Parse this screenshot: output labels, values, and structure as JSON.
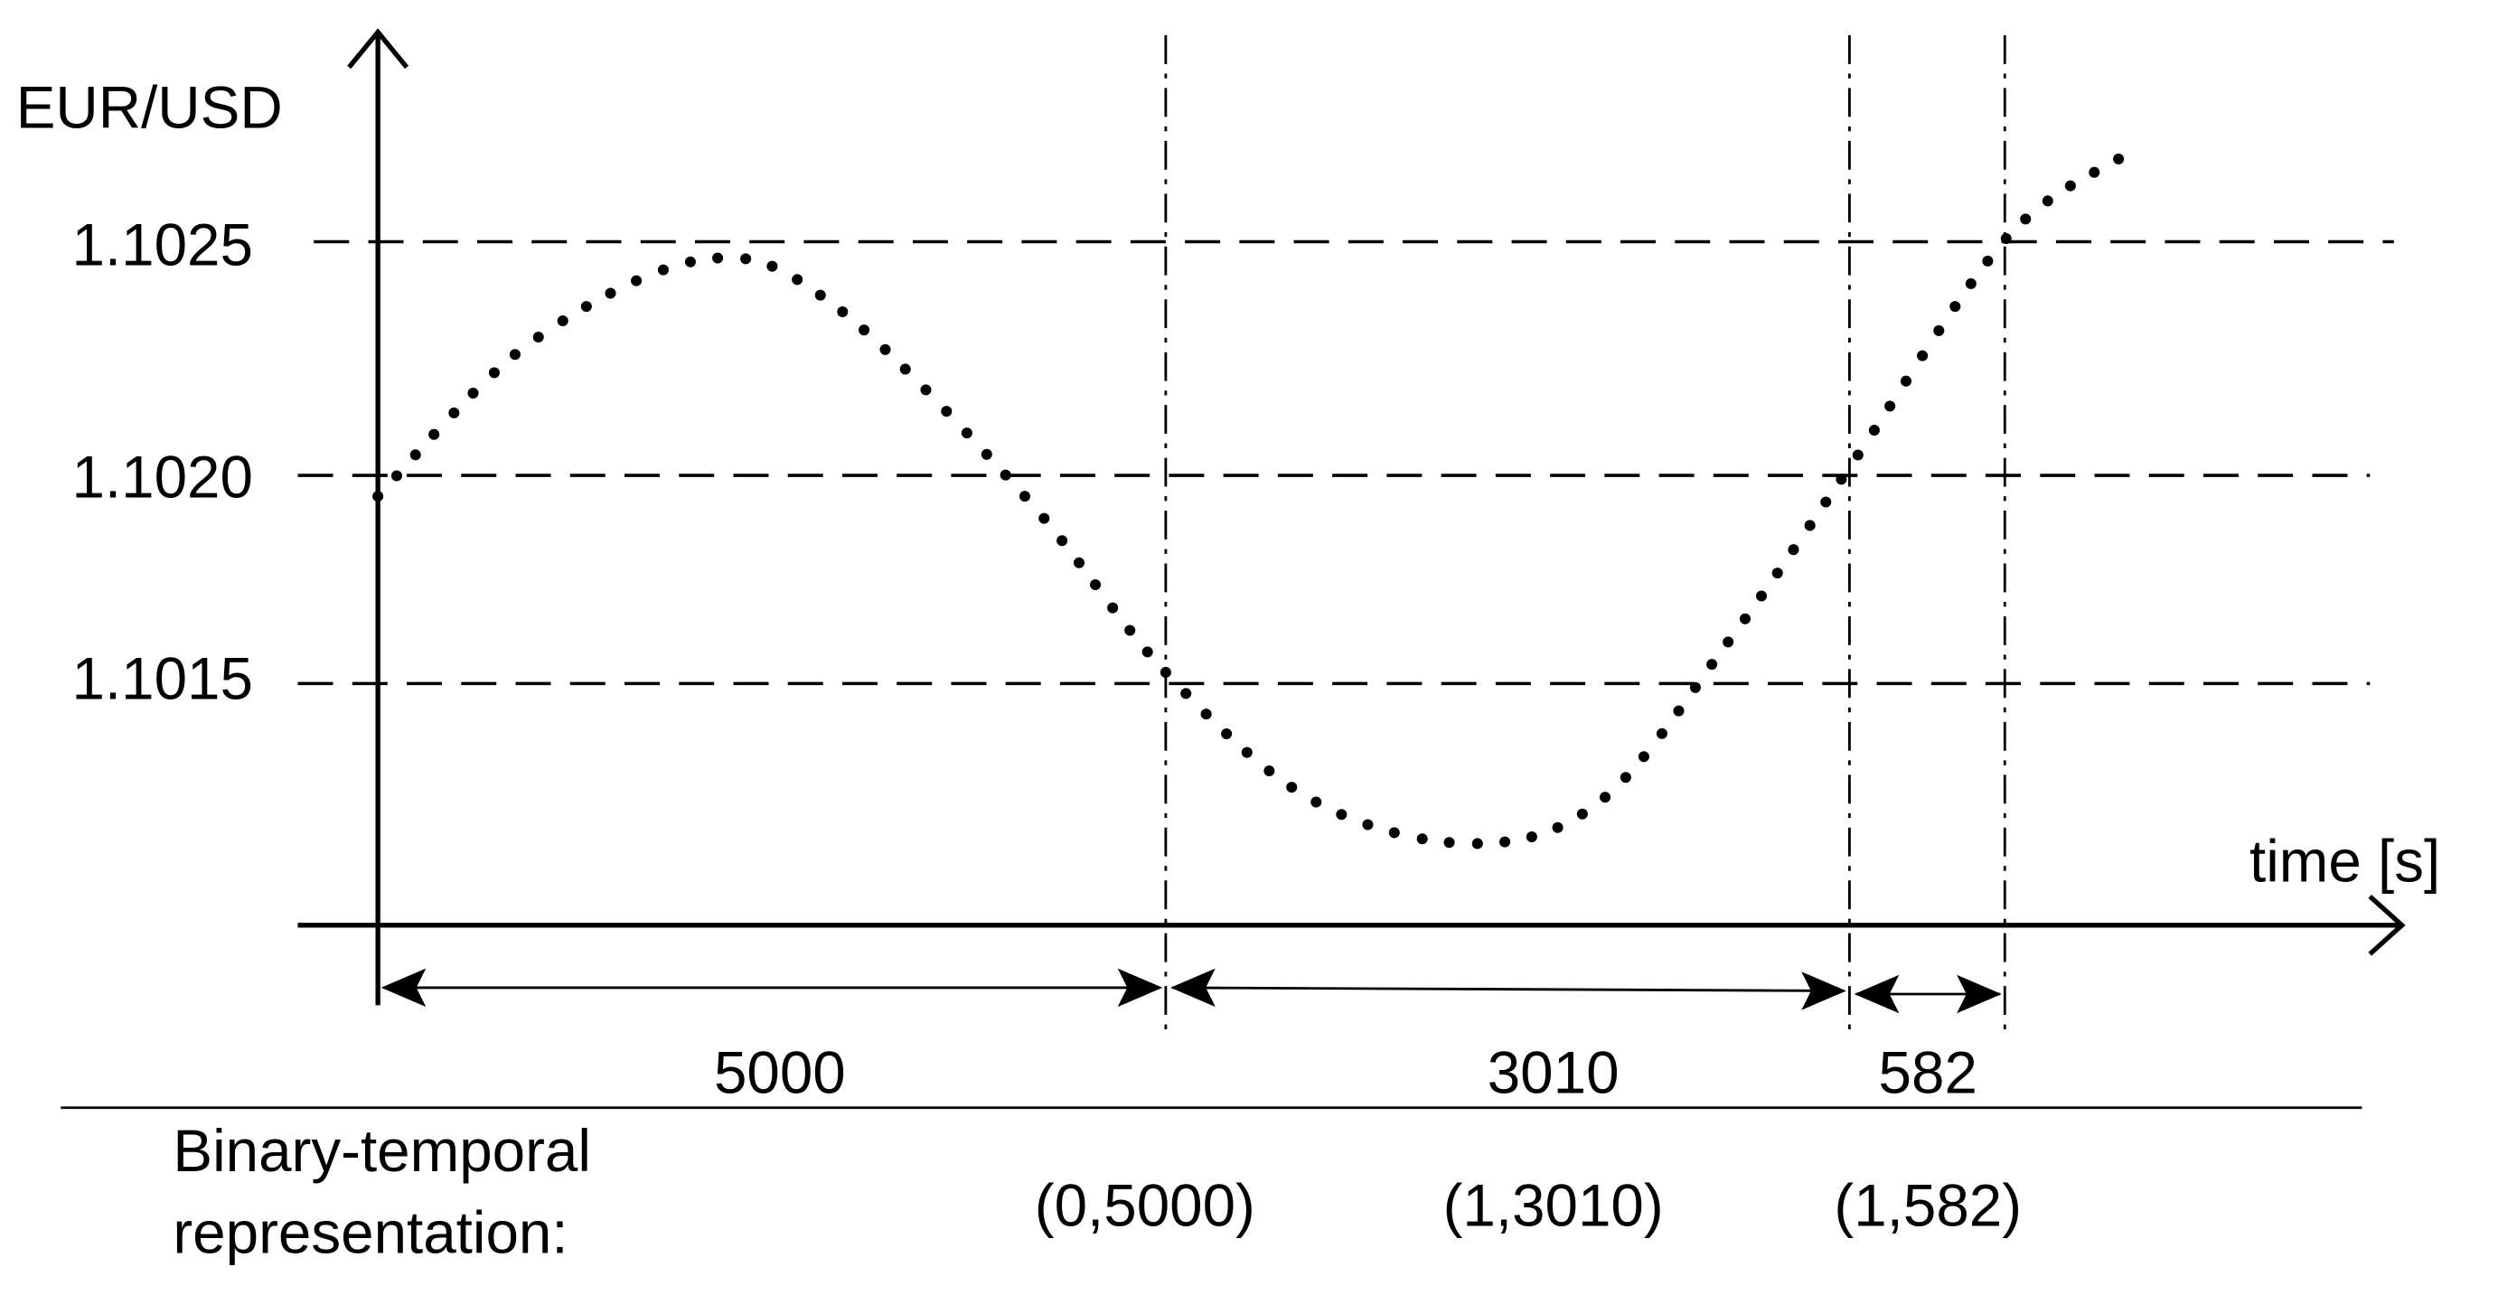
{
  "y_axis_label": "EUR/USD",
  "x_axis_label": "time [s]",
  "levels": [
    "1.1025",
    "1.1020",
    "1.1015"
  ],
  "intervals": [
    "5000",
    "3010",
    "582"
  ],
  "representation": {
    "label_lines": [
      "Binary-temporal",
      "representation:"
    ],
    "pairs": [
      "(0,5000)",
      "(1,3010)",
      "(1,582)"
    ]
  }
}
